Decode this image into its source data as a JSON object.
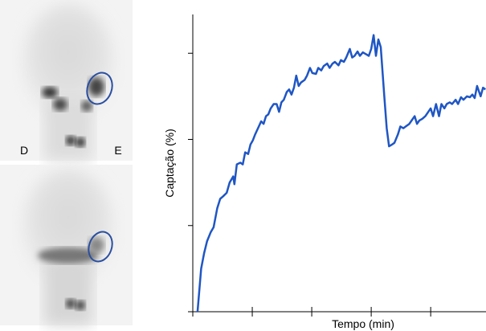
{
  "images": {
    "left_label": "D",
    "right_label": "E"
  },
  "chart_data": {
    "type": "line",
    "xlabel": "Tempo (min)",
    "ylabel": "Captação (%)",
    "xlim": [
      0,
      4.93
    ],
    "xticks": [
      0,
      1,
      2,
      3,
      4
    ],
    "ylim": [
      0,
      3.45
    ],
    "yticks": [
      0,
      1,
      2,
      3
    ],
    "series": [
      {
        "color": "#1f56c4",
        "x": [
          0.08,
          0.14,
          0.19,
          0.24,
          0.3,
          0.35,
          0.41,
          0.46,
          0.51,
          0.57,
          0.62,
          0.68,
          0.7,
          0.74,
          0.8,
          0.84,
          0.88,
          0.93,
          0.97,
          1.01,
          1.05,
          1.11,
          1.15,
          1.19,
          1.23,
          1.27,
          1.31,
          1.36,
          1.41,
          1.45,
          1.49,
          1.53,
          1.58,
          1.62,
          1.66,
          1.7,
          1.74,
          1.78,
          1.82,
          1.88,
          1.92,
          1.97,
          2.01,
          2.07,
          2.11,
          2.16,
          2.2,
          2.26,
          2.3,
          2.35,
          2.39,
          2.45,
          2.49,
          2.54,
          2.58,
          2.64,
          2.68,
          2.72,
          2.77,
          2.81,
          2.86,
          2.91,
          2.96,
          3.0,
          3.04,
          3.08,
          3.12,
          3.16,
          3.22,
          3.26,
          3.3,
          3.35,
          3.39,
          3.45,
          3.49,
          3.54,
          3.58,
          3.64,
          3.68,
          3.73,
          3.77,
          3.81,
          3.86,
          3.91,
          3.96,
          4.0,
          4.04,
          4.09,
          4.14,
          4.18,
          4.23,
          4.27,
          4.32,
          4.36,
          4.42,
          4.46,
          4.51,
          4.55,
          4.61,
          4.66,
          4.7,
          4.74,
          4.78,
          4.84,
          4.88,
          4.92
        ],
        "values": [
          0,
          0.5,
          0.68,
          0.82,
          0.92,
          0.98,
          1.2,
          1.31,
          1.34,
          1.38,
          1.5,
          1.57,
          1.48,
          1.71,
          1.73,
          1.71,
          1.85,
          1.83,
          1.94,
          1.99,
          2.06,
          2.15,
          2.21,
          2.18,
          2.27,
          2.29,
          2.36,
          2.41,
          2.41,
          2.32,
          2.43,
          2.46,
          2.55,
          2.58,
          2.52,
          2.6,
          2.74,
          2.62,
          2.66,
          2.69,
          2.74,
          2.83,
          2.77,
          2.76,
          2.83,
          2.8,
          2.85,
          2.88,
          2.83,
          2.88,
          2.9,
          2.86,
          2.92,
          2.9,
          2.95,
          3.05,
          2.95,
          2.97,
          3.02,
          2.97,
          3.01,
          2.99,
          2.97,
          3.05,
          3.21,
          2.97,
          3.16,
          3.07,
          2.5,
          2.13,
          1.92,
          1.94,
          1.96,
          2.06,
          2.15,
          2.13,
          2.15,
          2.18,
          2.22,
          2.27,
          2.18,
          2.22,
          2.24,
          2.27,
          2.32,
          2.36,
          2.27,
          2.41,
          2.27,
          2.41,
          2.36,
          2.41,
          2.43,
          2.41,
          2.46,
          2.41,
          2.49,
          2.46,
          2.5,
          2.49,
          2.52,
          2.48,
          2.62,
          2.5,
          2.6,
          2.58
        ]
      }
    ]
  }
}
